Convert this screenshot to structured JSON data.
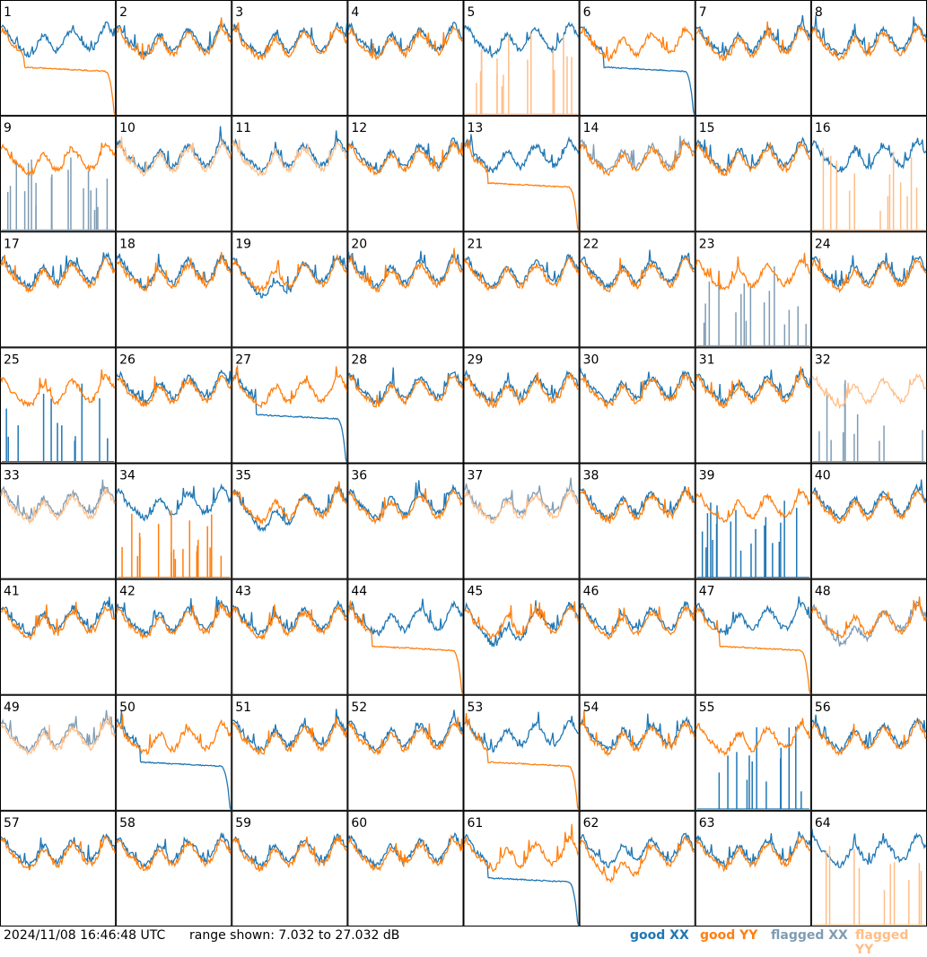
{
  "timestamp": "2024/11/08 16:46:48 UTC",
  "range_text": "range shown: 7.032 to 27.032 dB",
  "legend": {
    "good_xx": "good XX",
    "good_yy": "good YY",
    "flagged_xx": "flagged XX",
    "flagged_yy": "flagged YY"
  },
  "colors": {
    "good_xx": "#1f77b4",
    "good_yy": "#ff7f0e",
    "flagged_xx": "#7f9cb4",
    "flagged_yy": "#ffbe88"
  },
  "chart_data": {
    "type": "line",
    "grid": "8x8 small multiples",
    "ylim_db": [
      7.032,
      27.032
    ],
    "panels": [
      {
        "label": "1",
        "xx": "good",
        "yy": "good",
        "yy_shape": "droop"
      },
      {
        "label": "2",
        "xx": "good",
        "yy": "good"
      },
      {
        "label": "3",
        "xx": "good",
        "yy": "good"
      },
      {
        "label": "4",
        "xx": "good",
        "yy": "good"
      },
      {
        "label": "5",
        "xx": "good",
        "yy": "flagged",
        "yy_shape": "spikes"
      },
      {
        "label": "6",
        "xx": "good",
        "yy": "good",
        "xx_shape": "droop"
      },
      {
        "label": "7",
        "xx": "good",
        "yy": "good"
      },
      {
        "label": "8",
        "xx": "good",
        "yy": "good"
      },
      {
        "label": "9",
        "xx": "flagged",
        "yy": "good",
        "xx_shape": "spikes"
      },
      {
        "label": "10",
        "xx": "good",
        "yy": "flagged"
      },
      {
        "label": "11",
        "xx": "good",
        "yy": "flagged"
      },
      {
        "label": "12",
        "xx": "good",
        "yy": "good"
      },
      {
        "label": "13",
        "xx": "good",
        "yy": "good",
        "yy_shape": "droop"
      },
      {
        "label": "14",
        "xx": "flagged",
        "yy": "good"
      },
      {
        "label": "15",
        "xx": "good",
        "yy": "good"
      },
      {
        "label": "16",
        "xx": "good",
        "yy": "flagged",
        "yy_shape": "spikes"
      },
      {
        "label": "17",
        "xx": "good",
        "yy": "good"
      },
      {
        "label": "18",
        "xx": "good",
        "yy": "good"
      },
      {
        "label": "19",
        "xx": "good",
        "yy": "good",
        "xx_shape": "sag"
      },
      {
        "label": "20",
        "xx": "good",
        "yy": "good"
      },
      {
        "label": "21",
        "xx": "good",
        "yy": "good"
      },
      {
        "label": "22",
        "xx": "good",
        "yy": "good"
      },
      {
        "label": "23",
        "xx": "flagged",
        "yy": "good",
        "xx_shape": "spikes"
      },
      {
        "label": "24",
        "xx": "good",
        "yy": "good"
      },
      {
        "label": "25",
        "xx": "good",
        "yy": "good",
        "xx_shape": "spikes"
      },
      {
        "label": "26",
        "xx": "good",
        "yy": "good"
      },
      {
        "label": "27",
        "xx": "good",
        "yy": "good",
        "xx_shape": "droop"
      },
      {
        "label": "28",
        "xx": "good",
        "yy": "good"
      },
      {
        "label": "29",
        "xx": "good",
        "yy": "good"
      },
      {
        "label": "30",
        "xx": "good",
        "yy": "good"
      },
      {
        "label": "31",
        "xx": "good",
        "yy": "good"
      },
      {
        "label": "32",
        "xx": "flagged",
        "yy": "flagged",
        "xx_shape": "spikes"
      },
      {
        "label": "33",
        "xx": "flagged",
        "yy": "flagged"
      },
      {
        "label": "34",
        "xx": "good",
        "yy": "good",
        "yy_shape": "spikes"
      },
      {
        "label": "35",
        "xx": "good",
        "yy": "good",
        "xx_shape": "sag"
      },
      {
        "label": "36",
        "xx": "good",
        "yy": "good"
      },
      {
        "label": "37",
        "xx": "flagged",
        "yy": "flagged"
      },
      {
        "label": "38",
        "xx": "good",
        "yy": "good"
      },
      {
        "label": "39",
        "xx": "good",
        "yy": "good",
        "xx_shape": "spikes"
      },
      {
        "label": "40",
        "xx": "good",
        "yy": "good"
      },
      {
        "label": "41",
        "xx": "good",
        "yy": "good"
      },
      {
        "label": "42",
        "xx": "good",
        "yy": "good"
      },
      {
        "label": "43",
        "xx": "good",
        "yy": "good"
      },
      {
        "label": "44",
        "xx": "good",
        "yy": "good",
        "yy_shape": "droop"
      },
      {
        "label": "45",
        "xx": "good",
        "yy": "good",
        "xx_shape": "sag"
      },
      {
        "label": "46",
        "xx": "good",
        "yy": "good"
      },
      {
        "label": "47",
        "xx": "good",
        "yy": "good",
        "yy_shape": "droop"
      },
      {
        "label": "48",
        "xx": "flagged",
        "yy": "good",
        "xx_shape": "sag"
      },
      {
        "label": "49",
        "xx": "flagged",
        "yy": "flagged"
      },
      {
        "label": "50",
        "xx": "good",
        "yy": "good",
        "xx_shape": "droop"
      },
      {
        "label": "51",
        "xx": "good",
        "yy": "good"
      },
      {
        "label": "52",
        "xx": "good",
        "yy": "good"
      },
      {
        "label": "53",
        "xx": "good",
        "yy": "good",
        "yy_shape": "droop"
      },
      {
        "label": "54",
        "xx": "good",
        "yy": "good"
      },
      {
        "label": "55",
        "xx": "good",
        "yy": "good",
        "xx_shape": "spikes"
      },
      {
        "label": "56",
        "xx": "good",
        "yy": "good"
      },
      {
        "label": "57",
        "xx": "good",
        "yy": "good"
      },
      {
        "label": "58",
        "xx": "good",
        "yy": "good"
      },
      {
        "label": "59",
        "xx": "good",
        "yy": "good"
      },
      {
        "label": "60",
        "xx": "good",
        "yy": "good"
      },
      {
        "label": "61",
        "xx": "good",
        "yy": "good",
        "xx_shape": "droop"
      },
      {
        "label": "62",
        "xx": "good",
        "yy": "good",
        "yy_shape": "sag"
      },
      {
        "label": "63",
        "xx": "good",
        "yy": "good"
      },
      {
        "label": "64",
        "xx": "good",
        "yy": "flagged",
        "yy_shape": "spikes"
      }
    ]
  }
}
